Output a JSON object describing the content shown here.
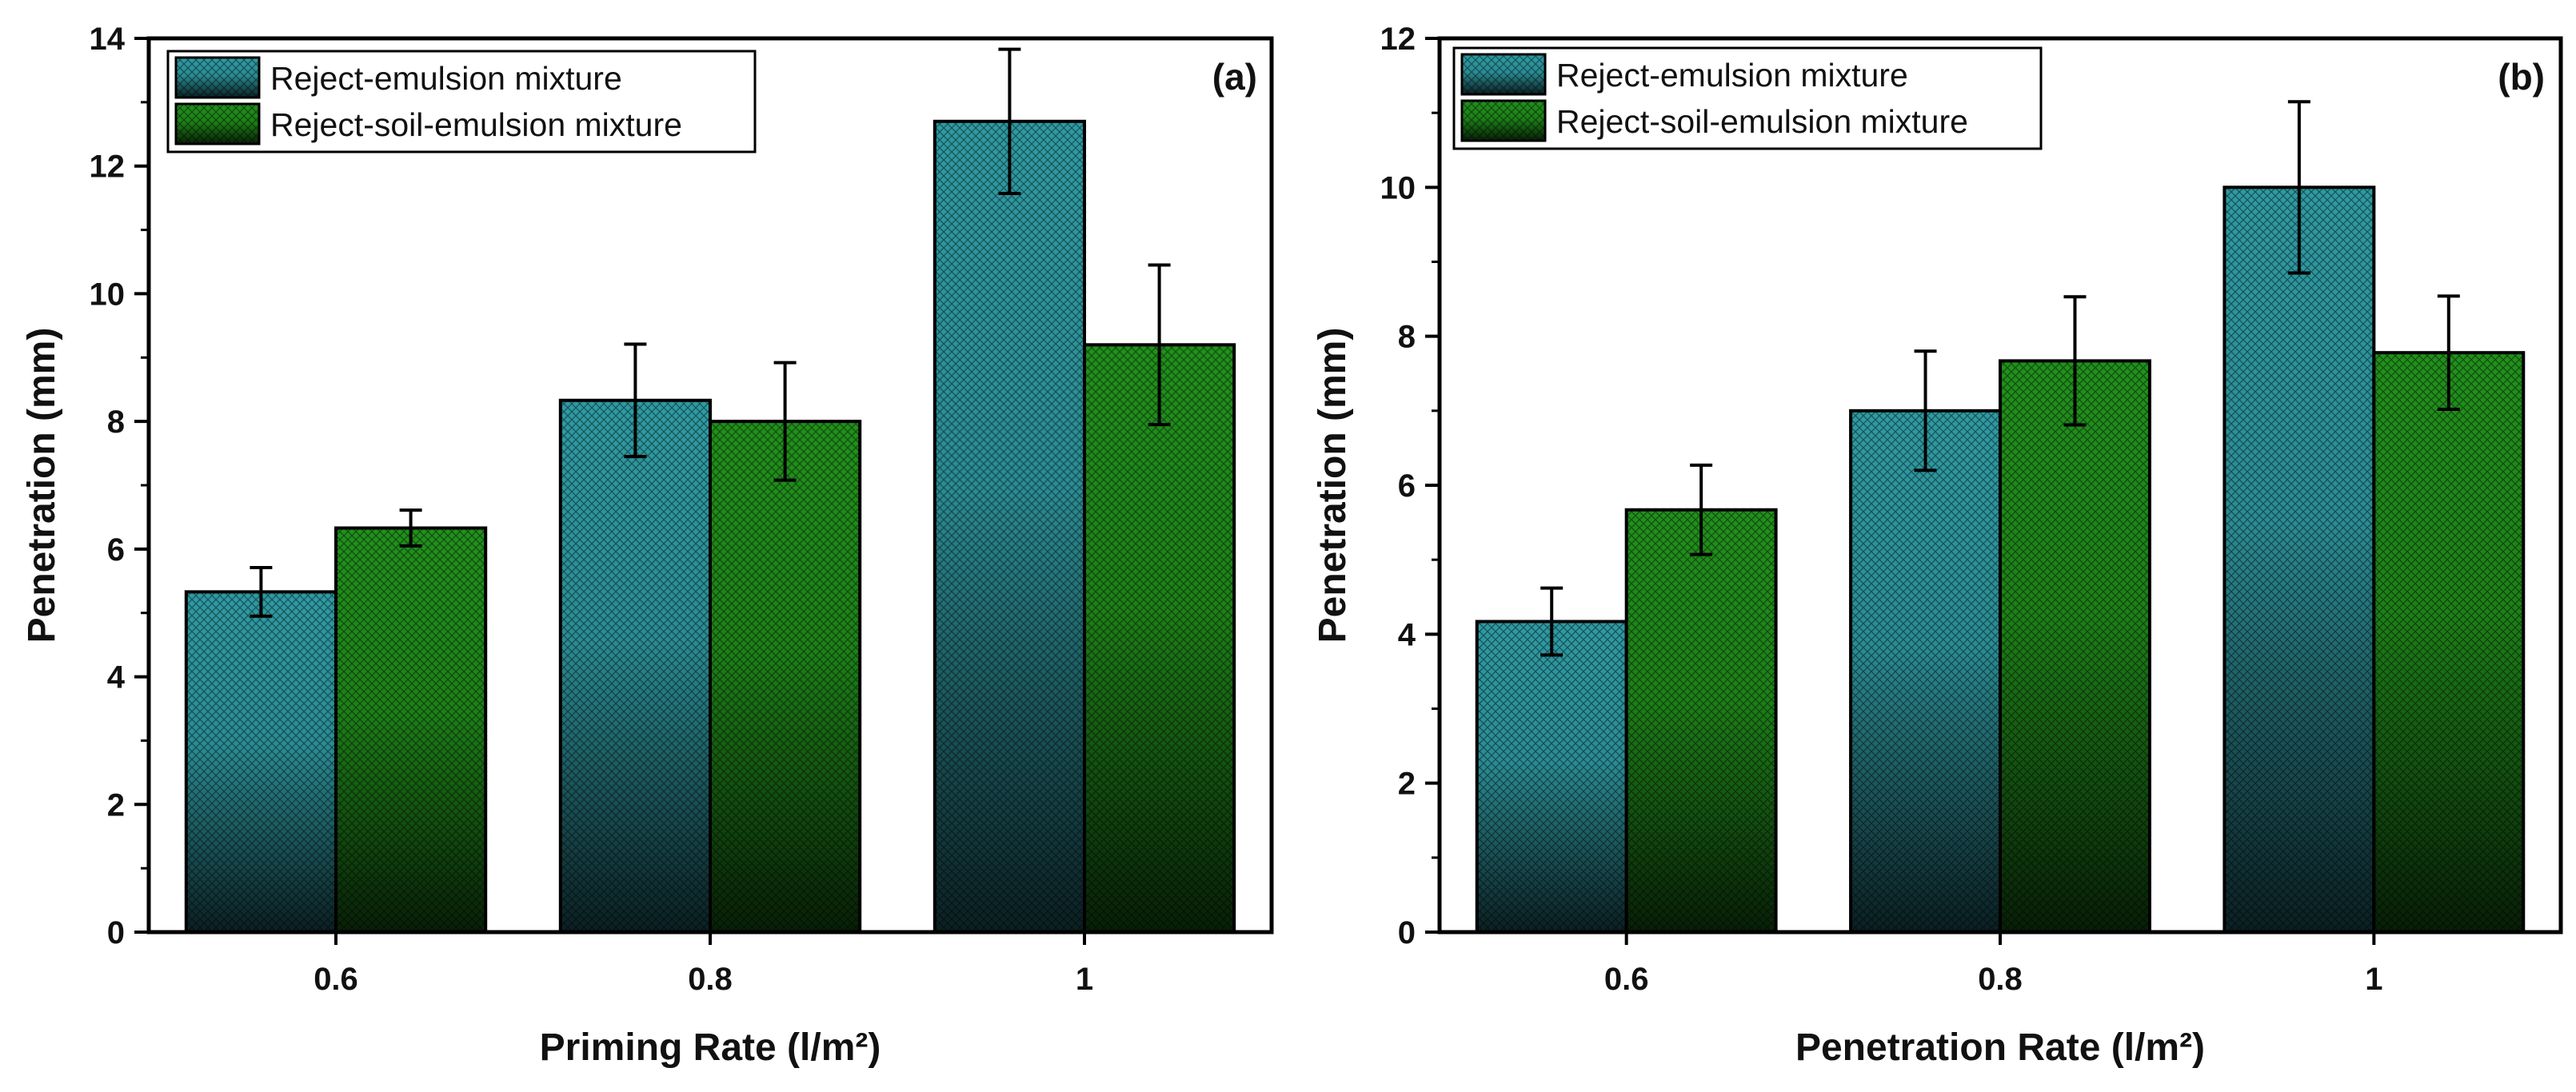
{
  "colors": {
    "series_a": "#2e9aa2",
    "series_a_dark": "#0c2a2e",
    "series_b": "#1f8a1b",
    "series_b_dark": "#0a2a0a",
    "axis": "#000000",
    "error_bar": "#000000"
  },
  "chart_data": [
    {
      "type": "bar",
      "panel_label": "(a)",
      "categories": [
        "0.6",
        "0.8",
        "1"
      ],
      "series": [
        {
          "name": "Reject-emulsion mixture",
          "values": [
            5.33,
            8.33,
            12.7
          ],
          "errors": [
            0.38,
            0.88,
            1.13
          ]
        },
        {
          "name": "Reject-soil-emulsion mixture",
          "values": [
            6.33,
            8.0,
            9.2
          ],
          "errors": [
            0.28,
            0.92,
            1.25
          ]
        }
      ],
      "xlabel": "Priming Rate (l/m²)",
      "ylabel": "Penetration (mm)",
      "ylim": [
        0,
        14
      ],
      "yticks": [
        0,
        2,
        4,
        6,
        8,
        10,
        12,
        14
      ],
      "grid": false,
      "legend": "top-left"
    },
    {
      "type": "bar",
      "panel_label": "(b)",
      "categories": [
        "0.6",
        "0.8",
        "1"
      ],
      "series": [
        {
          "name": "Reject-emulsion mixture",
          "values": [
            4.17,
            7.0,
            10.0
          ],
          "errors": [
            0.45,
            0.8,
            1.15
          ]
        },
        {
          "name": "Reject-soil-emulsion mixture",
          "values": [
            5.67,
            7.67,
            7.78
          ],
          "errors": [
            0.6,
            0.86,
            0.76
          ]
        }
      ],
      "xlabel": "Penetration Rate (l/m²)",
      "ylabel": "Penetration (mm)",
      "ylim": [
        0,
        12
      ],
      "yticks": [
        0,
        2,
        4,
        6,
        8,
        10,
        12
      ],
      "grid": false,
      "legend": "top-left"
    }
  ]
}
